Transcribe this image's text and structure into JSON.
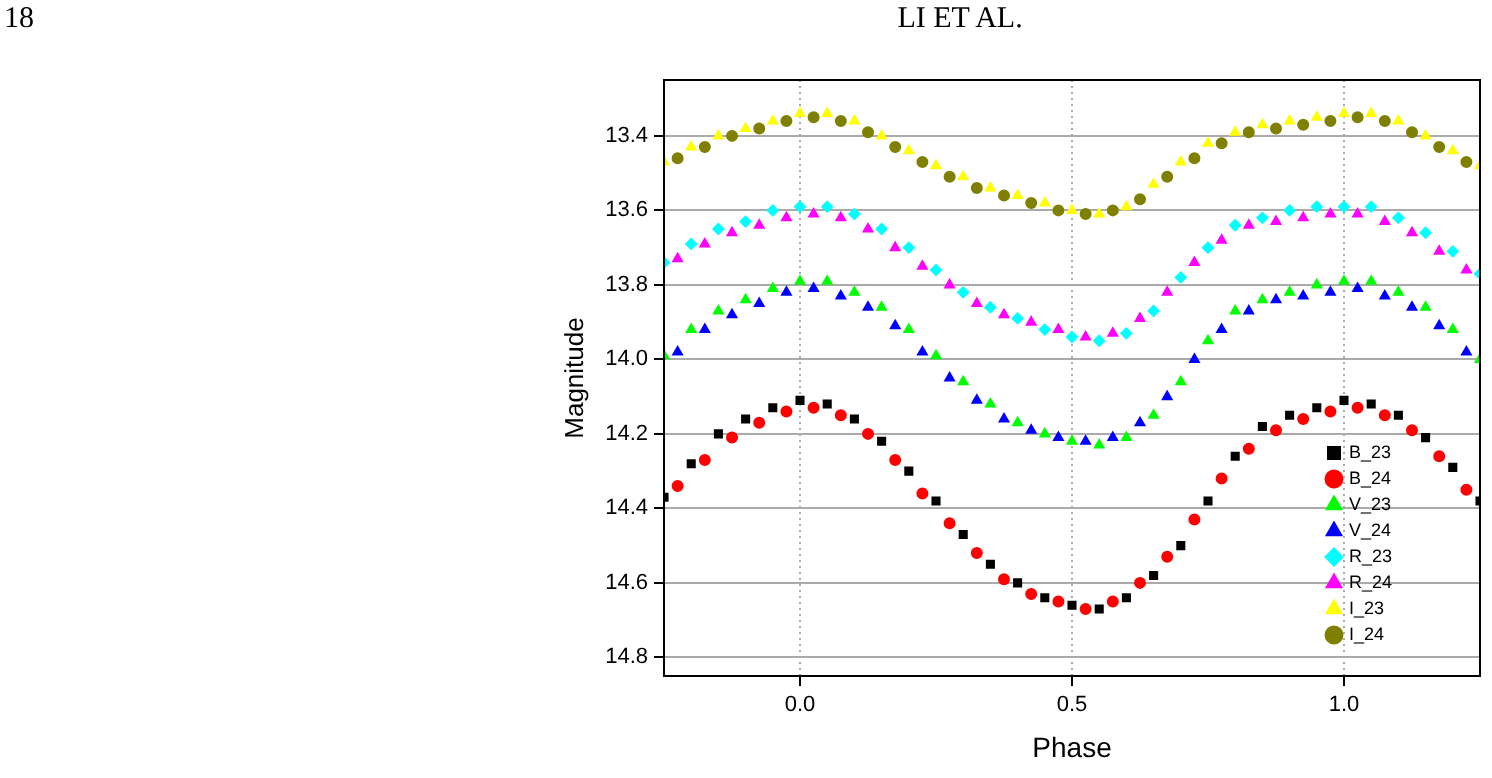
{
  "chart_data": {
    "type": "scatter",
    "xlabel": "Phase",
    "ylabel": "Magnitude",
    "annotations": [
      "18",
      "LI ET AL."
    ],
    "x": [
      -0.25,
      -0.2,
      -0.15,
      -0.1,
      -0.05,
      0,
      0.05,
      0.1,
      0.15,
      0.2,
      0.25,
      0.3,
      0.35,
      0.4,
      0.45,
      0.5,
      0.55,
      0.6,
      0.65,
      0.7,
      0.75,
      0.8,
      0.85,
      0.9,
      0.95,
      1.0,
      1.05,
      1.1,
      1.15,
      1.2,
      1.25
    ],
    "xlim": [
      -0.25,
      1.25
    ],
    "xticks": [
      {
        "value": 0,
        "label": "0.0"
      },
      {
        "value": 0.5,
        "label": "0.5"
      },
      {
        "value": 1,
        "label": "1.0"
      }
    ],
    "ylim": [
      14.85,
      13.25
    ],
    "yticks": [
      13.4,
      13.6,
      13.8,
      {
        "value": 14,
        "label": "14.0"
      },
      14.2,
      14.4,
      14.6,
      14.8
    ],
    "grid": true,
    "legend": "bottom right",
    "series": [
      {
        "name": "B_23",
        "color": "#000000",
        "marker": "square",
        "values": [
          14.37,
          14.28,
          14.2,
          14.16,
          14.13,
          14.11,
          14.12,
          14.16,
          14.22,
          14.3,
          14.38,
          14.47,
          14.55,
          14.6,
          14.64,
          14.66,
          14.67,
          14.64,
          14.58,
          14.5,
          14.38,
          14.26,
          14.18,
          14.15,
          14.13,
          14.11,
          14.12,
          14.15,
          14.21,
          14.29,
          14.38
        ]
      },
      {
        "name": "B_24",
        "color": "#ff0000",
        "marker": "circle",
        "x": [
          -0.225,
          -0.175,
          -0.125,
          -0.075,
          -0.025,
          0.025,
          0.075,
          0.125,
          0.175,
          0.225,
          0.275,
          0.325,
          0.375,
          0.425,
          0.475,
          0.525,
          0.575,
          0.625,
          0.675,
          0.725,
          0.775,
          0.825,
          0.875,
          0.925,
          0.975,
          1.025,
          1.075,
          1.125,
          1.175,
          1.225
        ],
        "values": [
          14.34,
          14.27,
          14.21,
          14.17,
          14.14,
          14.13,
          14.15,
          14.2,
          14.27,
          14.36,
          14.44,
          14.52,
          14.59,
          14.63,
          14.65,
          14.67,
          14.65,
          14.6,
          14.53,
          14.43,
          14.32,
          14.24,
          14.19,
          14.16,
          14.14,
          14.13,
          14.15,
          14.19,
          14.26,
          14.35
        ]
      },
      {
        "name": "V_23",
        "color": "#00ff00",
        "marker": "triangle",
        "values": [
          13.99,
          13.92,
          13.87,
          13.84,
          13.81,
          13.79,
          13.79,
          13.82,
          13.86,
          13.92,
          13.99,
          14.06,
          14.12,
          14.17,
          14.2,
          14.22,
          14.23,
          14.21,
          14.15,
          14.06,
          13.95,
          13.87,
          13.84,
          13.82,
          13.8,
          13.79,
          13.79,
          13.82,
          13.86,
          13.92,
          14.0
        ]
      },
      {
        "name": "V_24",
        "color": "#0000ff",
        "marker": "triangle",
        "x": [
          -0.225,
          -0.175,
          -0.125,
          -0.075,
          -0.025,
          0.025,
          0.075,
          0.125,
          0.175,
          0.225,
          0.275,
          0.325,
          0.375,
          0.425,
          0.475,
          0.525,
          0.575,
          0.625,
          0.675,
          0.725,
          0.775,
          0.825,
          0.875,
          0.925,
          0.975,
          1.025,
          1.075,
          1.125,
          1.175,
          1.225
        ],
        "values": [
          13.98,
          13.92,
          13.88,
          13.85,
          13.82,
          13.81,
          13.83,
          13.86,
          13.91,
          13.98,
          14.05,
          14.11,
          14.16,
          14.19,
          14.21,
          14.22,
          14.21,
          14.17,
          14.1,
          14.0,
          13.92,
          13.87,
          13.84,
          13.83,
          13.82,
          13.81,
          13.83,
          13.86,
          13.91,
          13.98
        ]
      },
      {
        "name": "R_23",
        "color": "#00ffff",
        "marker": "diamond",
        "values": [
          13.74,
          13.69,
          13.65,
          13.63,
          13.6,
          13.59,
          13.59,
          13.61,
          13.65,
          13.7,
          13.76,
          13.82,
          13.86,
          13.89,
          13.92,
          13.94,
          13.95,
          13.93,
          13.87,
          13.78,
          13.7,
          13.64,
          13.62,
          13.6,
          13.59,
          13.59,
          13.59,
          13.62,
          13.66,
          13.71,
          13.77
        ]
      },
      {
        "name": "R_24",
        "color": "#ff00ff",
        "marker": "triangle",
        "x": [
          -0.225,
          -0.175,
          -0.125,
          -0.075,
          -0.025,
          0.025,
          0.075,
          0.125,
          0.175,
          0.225,
          0.275,
          0.325,
          0.375,
          0.425,
          0.475,
          0.525,
          0.575,
          0.625,
          0.675,
          0.725,
          0.775,
          0.825,
          0.875,
          0.925,
          0.975,
          1.025,
          1.075,
          1.125,
          1.175,
          1.225
        ],
        "values": [
          13.73,
          13.69,
          13.66,
          13.64,
          13.62,
          13.61,
          13.62,
          13.65,
          13.7,
          13.75,
          13.8,
          13.85,
          13.88,
          13.9,
          13.92,
          13.94,
          13.93,
          13.89,
          13.82,
          13.74,
          13.68,
          13.64,
          13.63,
          13.62,
          13.61,
          13.61,
          13.63,
          13.66,
          13.71,
          13.76
        ]
      },
      {
        "name": "I_23",
        "color": "#ffff00",
        "marker": "triangle",
        "values": [
          13.47,
          13.43,
          13.4,
          13.38,
          13.36,
          13.34,
          13.34,
          13.36,
          13.4,
          13.44,
          13.48,
          13.51,
          13.54,
          13.56,
          13.58,
          13.6,
          13.61,
          13.59,
          13.53,
          13.47,
          13.42,
          13.39,
          13.37,
          13.36,
          13.35,
          13.34,
          13.34,
          13.36,
          13.4,
          13.44,
          13.48
        ]
      },
      {
        "name": "I_24",
        "color": "#808000",
        "marker": "circle",
        "x": [
          -0.225,
          -0.175,
          -0.125,
          -0.075,
          -0.025,
          0.025,
          0.075,
          0.125,
          0.175,
          0.225,
          0.275,
          0.325,
          0.375,
          0.425,
          0.475,
          0.525,
          0.575,
          0.625,
          0.675,
          0.725,
          0.775,
          0.825,
          0.875,
          0.925,
          0.975,
          1.025,
          1.075,
          1.125,
          1.175,
          1.225
        ],
        "values": [
          13.46,
          13.43,
          13.4,
          13.38,
          13.36,
          13.35,
          13.36,
          13.39,
          13.43,
          13.47,
          13.51,
          13.54,
          13.56,
          13.58,
          13.6,
          13.61,
          13.6,
          13.57,
          13.51,
          13.46,
          13.42,
          13.39,
          13.38,
          13.37,
          13.36,
          13.35,
          13.36,
          13.39,
          13.43,
          13.47
        ]
      }
    ]
  }
}
